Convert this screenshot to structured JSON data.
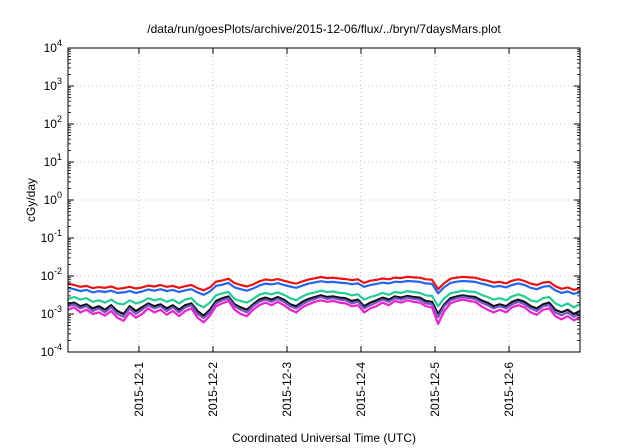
{
  "chart_data": {
    "type": "line",
    "title": "/data/run/goesPlots/archive/2015-12-06/flux/../bryn/7daysMars.plot",
    "xlabel": "Coordinated Universal Time (UTC)",
    "ylabel": "cGy/day",
    "yscale": "log",
    "ylim": [
      0.0001,
      10000
    ],
    "y_ticks": [
      {
        "value": 0.0001,
        "base": "10",
        "exp": "-4"
      },
      {
        "value": 0.001,
        "base": "10",
        "exp": "-3"
      },
      {
        "value": 0.01,
        "base": "10",
        "exp": "-2"
      },
      {
        "value": 0.1,
        "base": "10",
        "exp": "-1"
      },
      {
        "value": 1,
        "base": "10",
        "exp": "0"
      },
      {
        "value": 10,
        "base": "10",
        "exp": "1"
      },
      {
        "value": 100,
        "base": "10",
        "exp": "2"
      },
      {
        "value": 1000,
        "base": "10",
        "exp": "3"
      },
      {
        "value": 10000,
        "base": "10",
        "exp": "4"
      }
    ],
    "xlim": [
      "2015-11-30T01:00",
      "2015-12-06T23:00"
    ],
    "x_ticks": [
      "2015-12-1",
      "2015-12-2",
      "2015-12-3",
      "2015-12-4",
      "2015-12-5",
      "2015-12-6"
    ],
    "grid": true,
    "legend": "none",
    "x": [
      "2015-11-30T01:00",
      "2015-11-30T03:00",
      "2015-11-30T05:00",
      "2015-11-30T07:00",
      "2015-11-30T09:00",
      "2015-11-30T11:00",
      "2015-11-30T13:00",
      "2015-11-30T15:00",
      "2015-11-30T17:00",
      "2015-11-30T19:00",
      "2015-11-30T21:00",
      "2015-11-30T23:00",
      "2015-12-01T01:00",
      "2015-12-01T03:00",
      "2015-12-01T05:00",
      "2015-12-01T07:00",
      "2015-12-01T09:00",
      "2015-12-01T11:00",
      "2015-12-01T13:00",
      "2015-12-01T15:00",
      "2015-12-01T17:00",
      "2015-12-01T19:00",
      "2015-12-01T21:00",
      "2015-12-01T23:00",
      "2015-12-02T01:00",
      "2015-12-02T03:00",
      "2015-12-02T05:00",
      "2015-12-02T07:00",
      "2015-12-02T09:00",
      "2015-12-02T11:00",
      "2015-12-02T13:00",
      "2015-12-02T15:00",
      "2015-12-02T17:00",
      "2015-12-02T19:00",
      "2015-12-02T21:00",
      "2015-12-02T23:00",
      "2015-12-03T01:00",
      "2015-12-03T03:00",
      "2015-12-03T05:00",
      "2015-12-03T07:00",
      "2015-12-03T09:00",
      "2015-12-03T11:00",
      "2015-12-03T13:00",
      "2015-12-03T15:00",
      "2015-12-03T17:00",
      "2015-12-03T19:00",
      "2015-12-03T21:00",
      "2015-12-03T23:00",
      "2015-12-04T01:00",
      "2015-12-04T03:00",
      "2015-12-04T05:00",
      "2015-12-04T07:00",
      "2015-12-04T09:00",
      "2015-12-04T11:00",
      "2015-12-04T13:00",
      "2015-12-04T15:00",
      "2015-12-04T17:00",
      "2015-12-04T19:00",
      "2015-12-04T21:00",
      "2015-12-04T23:00",
      "2015-12-05T01:00",
      "2015-12-05T03:00",
      "2015-12-05T05:00",
      "2015-12-05T07:00",
      "2015-12-05T09:00",
      "2015-12-05T11:00",
      "2015-12-05T13:00",
      "2015-12-05T15:00",
      "2015-12-05T17:00",
      "2015-12-05T19:00",
      "2015-12-05T21:00",
      "2015-12-05T23:00",
      "2015-12-06T01:00",
      "2015-12-06T03:00",
      "2015-12-06T05:00",
      "2015-12-06T07:00",
      "2015-12-06T09:00",
      "2015-12-06T11:00",
      "2015-12-06T13:00",
      "2015-12-06T15:00",
      "2015-12-06T17:00",
      "2015-12-06T19:00",
      "2015-12-06T21:00",
      "2015-12-06T23:00"
    ],
    "series": [
      {
        "color": "#ee1111",
        "values": [
          0.0063,
          0.0058,
          0.0052,
          0.0055,
          0.0048,
          0.0051,
          0.0049,
          0.0053,
          0.0046,
          0.0048,
          0.0052,
          0.0047,
          0.005,
          0.0056,
          0.0053,
          0.0058,
          0.0052,
          0.0055,
          0.0049,
          0.0054,
          0.0058,
          0.0048,
          0.0042,
          0.005,
          0.0071,
          0.0076,
          0.0085,
          0.0065,
          0.0058,
          0.0053,
          0.006,
          0.0072,
          0.0081,
          0.0077,
          0.0083,
          0.0075,
          0.0068,
          0.0063,
          0.0072,
          0.0081,
          0.0087,
          0.0094,
          0.0088,
          0.009,
          0.0086,
          0.0083,
          0.0078,
          0.0082,
          0.0066,
          0.0075,
          0.0079,
          0.0086,
          0.0082,
          0.0091,
          0.0088,
          0.0095,
          0.0092,
          0.009,
          0.0082,
          0.008,
          0.0045,
          0.0065,
          0.0085,
          0.0091,
          0.0095,
          0.0092,
          0.009,
          0.0081,
          0.0075,
          0.0067,
          0.007,
          0.0064,
          0.0075,
          0.0082,
          0.0074,
          0.0063,
          0.0058,
          0.0067,
          0.007,
          0.0054,
          0.0046,
          0.005,
          0.0043,
          0.0048
        ]
      },
      {
        "color": "#2266ee",
        "values": [
          0.0049,
          0.0045,
          0.004,
          0.0043,
          0.0037,
          0.004,
          0.0038,
          0.0041,
          0.0036,
          0.0037,
          0.004,
          0.0036,
          0.0039,
          0.0044,
          0.0041,
          0.0045,
          0.004,
          0.0043,
          0.0038,
          0.0042,
          0.0045,
          0.0037,
          0.0032,
          0.0039,
          0.0055,
          0.0059,
          0.0066,
          0.005,
          0.0045,
          0.0041,
          0.0047,
          0.0056,
          0.0063,
          0.006,
          0.0065,
          0.0058,
          0.0053,
          0.0049,
          0.0056,
          0.0063,
          0.0068,
          0.0073,
          0.0069,
          0.007,
          0.0067,
          0.0065,
          0.0061,
          0.0064,
          0.0052,
          0.0058,
          0.0062,
          0.0067,
          0.0064,
          0.0071,
          0.0069,
          0.0074,
          0.0072,
          0.007,
          0.0064,
          0.0062,
          0.0035,
          0.0051,
          0.0066,
          0.0071,
          0.0074,
          0.0072,
          0.007,
          0.0063,
          0.0058,
          0.0052,
          0.0055,
          0.005,
          0.0058,
          0.0064,
          0.0058,
          0.0049,
          0.0045,
          0.0052,
          0.0055,
          0.0042,
          0.0036,
          0.0039,
          0.0034,
          0.0037
        ]
      },
      {
        "color": "#22cc99",
        "values": [
          0.0025,
          0.0028,
          0.0024,
          0.0026,
          0.0021,
          0.0023,
          0.002,
          0.0024,
          0.0019,
          0.0018,
          0.0023,
          0.0019,
          0.0021,
          0.0026,
          0.0023,
          0.0025,
          0.0021,
          0.0024,
          0.0019,
          0.0024,
          0.0026,
          0.0018,
          0.0015,
          0.002,
          0.0031,
          0.0035,
          0.0038,
          0.0025,
          0.0022,
          0.002,
          0.0025,
          0.0032,
          0.0036,
          0.0033,
          0.0037,
          0.0032,
          0.0026,
          0.0023,
          0.0029,
          0.0034,
          0.0037,
          0.0041,
          0.0038,
          0.0039,
          0.0036,
          0.0035,
          0.0031,
          0.0033,
          0.0024,
          0.0028,
          0.0031,
          0.0036,
          0.0032,
          0.0038,
          0.0036,
          0.004,
          0.0038,
          0.0036,
          0.0031,
          0.003,
          0.0016,
          0.0026,
          0.0035,
          0.0038,
          0.0041,
          0.0039,
          0.0038,
          0.0032,
          0.0028,
          0.0024,
          0.0026,
          0.0023,
          0.0029,
          0.0033,
          0.0029,
          0.0023,
          0.0021,
          0.0026,
          0.0028,
          0.0019,
          0.0016,
          0.0019,
          0.0015,
          0.0018
        ]
      },
      {
        "color": "#111111",
        "values": [
          0.0018,
          0.002,
          0.0016,
          0.0018,
          0.0014,
          0.0016,
          0.0013,
          0.0017,
          0.0012,
          0.001,
          0.0016,
          0.0012,
          0.0015,
          0.0019,
          0.0016,
          0.0018,
          0.0014,
          0.0017,
          0.0013,
          0.0017,
          0.0019,
          0.0012,
          0.0009,
          0.0013,
          0.0022,
          0.0026,
          0.0029,
          0.0018,
          0.0015,
          0.0013,
          0.0018,
          0.0024,
          0.0027,
          0.0024,
          0.0028,
          0.0024,
          0.0018,
          0.0016,
          0.0021,
          0.0025,
          0.0028,
          0.0031,
          0.0028,
          0.0029,
          0.0027,
          0.0026,
          0.0022,
          0.0024,
          0.0016,
          0.002,
          0.0023,
          0.0027,
          0.0024,
          0.0029,
          0.0027,
          0.003,
          0.0028,
          0.0027,
          0.0022,
          0.0021,
          0.001,
          0.0018,
          0.0026,
          0.0029,
          0.0031,
          0.0029,
          0.0028,
          0.0023,
          0.002,
          0.0016,
          0.0018,
          0.0016,
          0.0021,
          0.0024,
          0.0021,
          0.0016,
          0.0014,
          0.0018,
          0.002,
          0.0013,
          0.0011,
          0.0013,
          0.001,
          0.0012
        ]
      },
      {
        "color": "#7755cc",
        "values": [
          0.0016,
          0.0018,
          0.0014,
          0.0016,
          0.0012,
          0.0014,
          0.0011,
          0.0015,
          0.001,
          0.00085,
          0.0014,
          0.001,
          0.0013,
          0.0017,
          0.0014,
          0.0016,
          0.0012,
          0.0015,
          0.0011,
          0.0015,
          0.0017,
          0.001,
          0.00078,
          0.0011,
          0.0019,
          0.0023,
          0.0026,
          0.0016,
          0.0013,
          0.0011,
          0.0016,
          0.0021,
          0.0024,
          0.0021,
          0.0025,
          0.0021,
          0.0016,
          0.0014,
          0.0018,
          0.0022,
          0.0025,
          0.0028,
          0.0025,
          0.0026,
          0.0024,
          0.0023,
          0.0019,
          0.0021,
          0.0014,
          0.0017,
          0.002,
          0.0024,
          0.0021,
          0.0026,
          0.0024,
          0.0027,
          0.0025,
          0.0024,
          0.0019,
          0.0018,
          0.00082,
          0.0016,
          0.0023,
          0.0026,
          0.0028,
          0.0026,
          0.0025,
          0.002,
          0.0017,
          0.0014,
          0.0016,
          0.0014,
          0.0018,
          0.0021,
          0.0018,
          0.0014,
          0.0012,
          0.0016,
          0.0017,
          0.0011,
          0.00092,
          0.0011,
          0.00085,
          0.001
        ]
      },
      {
        "color": "#ee22cc",
        "values": [
          0.0013,
          0.0015,
          0.0011,
          0.0013,
          0.001,
          0.0011,
          0.0009,
          0.0012,
          0.0008,
          0.00066,
          0.0011,
          0.0008,
          0.001,
          0.0014,
          0.0011,
          0.0013,
          0.00096,
          0.0012,
          0.00088,
          0.0012,
          0.0014,
          0.0008,
          0.0006,
          0.0009,
          0.0016,
          0.0019,
          0.0022,
          0.0013,
          0.001,
          0.00088,
          0.0013,
          0.0017,
          0.002,
          0.0017,
          0.0021,
          0.0017,
          0.0013,
          0.0011,
          0.0015,
          0.0018,
          0.0021,
          0.0023,
          0.0021,
          0.0022,
          0.002,
          0.0019,
          0.0016,
          0.0017,
          0.0011,
          0.0014,
          0.0016,
          0.002,
          0.0017,
          0.0022,
          0.002,
          0.0023,
          0.0021,
          0.002,
          0.0016,
          0.0015,
          0.00055,
          0.0012,
          0.0019,
          0.0022,
          0.0024,
          0.0022,
          0.0021,
          0.0016,
          0.0013,
          0.0011,
          0.0013,
          0.0011,
          0.0015,
          0.0017,
          0.0015,
          0.0011,
          0.00095,
          0.0013,
          0.0014,
          0.00088,
          0.00072,
          0.00088,
          0.00068,
          0.00082
        ]
      }
    ]
  }
}
